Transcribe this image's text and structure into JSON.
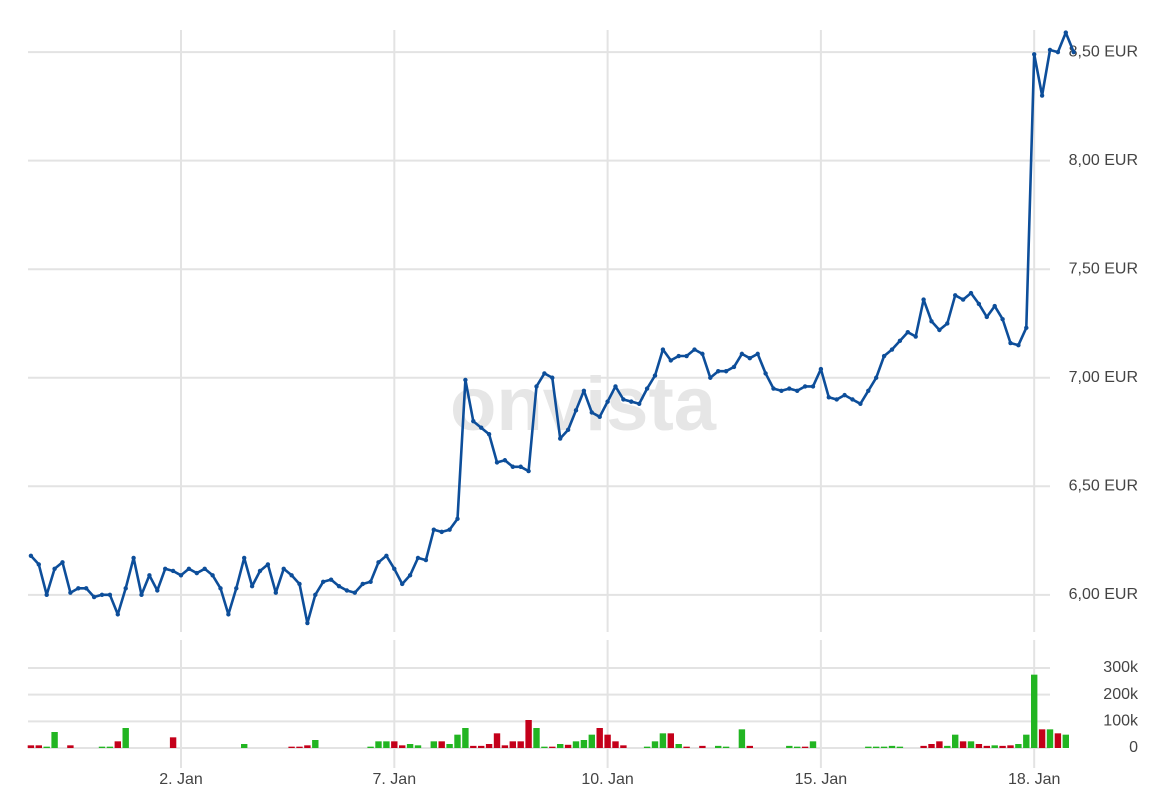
{
  "chart_data": {
    "type": "line",
    "watermark": "onvista",
    "categories": [
      null,
      null,
      null,
      null,
      null,
      null,
      null,
      null,
      null,
      null,
      null,
      null,
      null,
      null,
      null,
      null,
      null,
      null,
      null,
      "2. Jan",
      null,
      null,
      null,
      null,
      null,
      null,
      null,
      null,
      null,
      null,
      null,
      null,
      null,
      null,
      null,
      null,
      null,
      null,
      null,
      null,
      null,
      null,
      null,
      null,
      null,
      null,
      "7. Jan",
      null,
      null,
      null,
      null,
      null,
      null,
      null,
      null,
      null,
      null,
      null,
      null,
      null,
      null,
      null,
      null,
      null,
      null,
      null,
      null,
      null,
      null,
      null,
      null,
      null,
      null,
      "10. Jan",
      null,
      null,
      null,
      null,
      null,
      null,
      null,
      null,
      null,
      null,
      null,
      null,
      null,
      null,
      null,
      null,
      null,
      null,
      null,
      null,
      null,
      null,
      null,
      null,
      null,
      null,
      "15. Jan",
      null,
      null,
      null,
      null,
      null,
      null,
      null,
      null,
      null,
      null,
      null,
      null,
      null,
      null,
      null,
      null,
      null,
      null,
      null,
      null,
      null,
      null,
      null,
      null,
      null,
      null,
      "18. Jan",
      null,
      null,
      null,
      null,
      null
    ],
    "series": [
      {
        "color": "#0d4e9a",
        "values": [
          6.18,
          6.14,
          6.0,
          6.12,
          6.15,
          6.01,
          6.03,
          6.03,
          5.99,
          6.0,
          6.0,
          5.91,
          6.03,
          6.17,
          6.0,
          6.09,
          6.02,
          6.12,
          6.11,
          6.09,
          6.12,
          6.1,
          6.12,
          6.09,
          6.03,
          5.91,
          6.03,
          6.17,
          6.04,
          6.11,
          6.14,
          6.01,
          6.12,
          6.09,
          6.05,
          5.87,
          6.0,
          6.06,
          6.07,
          6.04,
          6.02,
          6.01,
          6.05,
          6.06,
          6.15,
          6.18,
          6.12,
          6.05,
          6.09,
          6.17,
          6.16,
          6.3,
          6.29,
          6.3,
          6.35,
          6.99,
          6.8,
          6.77,
          6.74,
          6.61,
          6.62,
          6.59,
          6.59,
          6.57,
          6.96,
          7.02,
          7.0,
          6.72,
          6.76,
          6.85,
          6.94,
          6.84,
          6.82,
          6.89,
          6.96,
          6.9,
          6.89,
          6.88,
          6.95,
          7.01,
          7.13,
          7.08,
          7.1,
          7.1,
          7.13,
          7.11,
          7.0,
          7.03,
          7.03,
          7.05,
          7.11,
          7.09,
          7.11,
          7.02,
          6.95,
          6.94,
          6.95,
          6.94,
          6.96,
          6.96,
          7.04,
          6.91,
          6.9,
          6.92,
          6.9,
          6.88,
          6.94,
          7.0,
          7.1,
          7.13,
          7.17,
          7.21,
          7.19,
          7.36,
          7.26,
          7.22,
          7.25,
          7.38,
          7.36,
          7.39,
          7.34,
          7.28,
          7.33,
          7.27,
          7.16,
          7.15,
          7.23,
          8.49,
          8.3,
          8.51,
          8.5,
          8.59,
          8.5
        ]
      }
    ],
    "ylim": [
      5.815,
      8.648
    ],
    "yticks": [
      {
        "value": 6,
        "label": "6,00 EUR"
      },
      {
        "value": 6.5,
        "label": "6,50 EUR"
      },
      {
        "value": 7,
        "label": "7,00 EUR"
      },
      {
        "value": 7.5,
        "label": "7,50 EUR"
      },
      {
        "value": 8,
        "label": "8,00 EUR"
      },
      {
        "value": 8.5,
        "label": "8,50 EUR"
      }
    ],
    "grid": true,
    "volume": {
      "type": "bar",
      "values": [
        10000,
        10000,
        5000,
        60000,
        0,
        10000,
        0,
        0,
        0,
        5000,
        5000,
        25000,
        75000,
        0,
        0,
        0,
        0,
        0,
        40000,
        0,
        0,
        0,
        0,
        0,
        0,
        0,
        0,
        15000,
        0,
        0,
        0,
        0,
        0,
        5000,
        5000,
        10000,
        30000,
        0,
        0,
        0,
        0,
        0,
        0,
        5000,
        25000,
        25000,
        25000,
        10000,
        15000,
        10000,
        0,
        25000,
        25000,
        15000,
        50000,
        75000,
        8000,
        8000,
        15000,
        55000,
        10000,
        25000,
        25000,
        105000,
        75000,
        5000,
        5000,
        15000,
        12000,
        25000,
        30000,
        50000,
        75000,
        50000,
        25000,
        10000,
        0,
        0,
        5000,
        25000,
        55000,
        55000,
        15000,
        5000,
        0,
        8000,
        0,
        8000,
        5000,
        0,
        70000,
        8000,
        0,
        0,
        0,
        0,
        8000,
        5000,
        5000,
        25000,
        0,
        0,
        0,
        0,
        0,
        0,
        5000,
        5000,
        5000,
        8000,
        5000,
        0,
        0,
        8000,
        15000,
        25000,
        8000,
        50000,
        25000,
        25000,
        15000,
        8000,
        10000,
        8000,
        10000,
        15000,
        50000,
        275000,
        70000,
        70000,
        55000,
        50000,
        0
      ],
      "colors": [
        "#c4001a",
        "#c4001a",
        "#22b522",
        "#22b522",
        null,
        "#c4001a",
        null,
        null,
        null,
        "#22b522",
        "#22b522",
        "#c4001a",
        "#22b522",
        null,
        null,
        null,
        null,
        null,
        "#c4001a",
        null,
        null,
        null,
        null,
        null,
        null,
        null,
        null,
        "#22b522",
        null,
        null,
        null,
        null,
        null,
        "#c4001a",
        "#c4001a",
        "#c4001a",
        "#22b522",
        null,
        null,
        null,
        null,
        null,
        null,
        "#22b522",
        "#22b522",
        "#22b522",
        "#c4001a",
        "#c4001a",
        "#22b522",
        "#22b522",
        null,
        "#22b522",
        "#c4001a",
        "#22b522",
        "#22b522",
        "#22b522",
        "#c4001a",
        "#c4001a",
        "#c4001a",
        "#c4001a",
        "#c4001a",
        "#c4001a",
        "#c4001a",
        "#c4001a",
        "#22b522",
        "#22b522",
        "#c4001a",
        "#22b522",
        "#c4001a",
        "#22b522",
        "#22b522",
        "#22b522",
        "#c4001a",
        "#c4001a",
        "#c4001a",
        "#c4001a",
        null,
        null,
        "#22b522",
        "#22b522",
        "#22b522",
        "#c4001a",
        "#22b522",
        "#c4001a",
        null,
        "#c4001a",
        null,
        "#22b522",
        "#22b522",
        null,
        "#22b522",
        "#c4001a",
        null,
        null,
        null,
        null,
        "#22b522",
        "#22b522",
        "#c4001a",
        "#22b522",
        null,
        null,
        null,
        null,
        null,
        null,
        "#22b522",
        "#22b522",
        "#22b522",
        "#22b522",
        "#22b522",
        null,
        null,
        "#c4001a",
        "#c4001a",
        "#c4001a",
        "#22b522",
        "#22b522",
        "#c4001a",
        "#22b522",
        "#c4001a",
        "#c4001a",
        "#22b522",
        "#c4001a",
        "#c4001a",
        "#22b522",
        "#22b522",
        "#22b522",
        "#c4001a",
        "#22b522",
        "#c4001a",
        "#22b522",
        null
      ],
      "ylim": [
        0,
        405000
      ],
      "yticks": [
        0,
        {
          "value": 100000,
          "label": "100k"
        },
        {
          "value": 200000,
          "label": "200k"
        },
        {
          "value": 300000,
          "label": "300k"
        }
      ]
    }
  }
}
